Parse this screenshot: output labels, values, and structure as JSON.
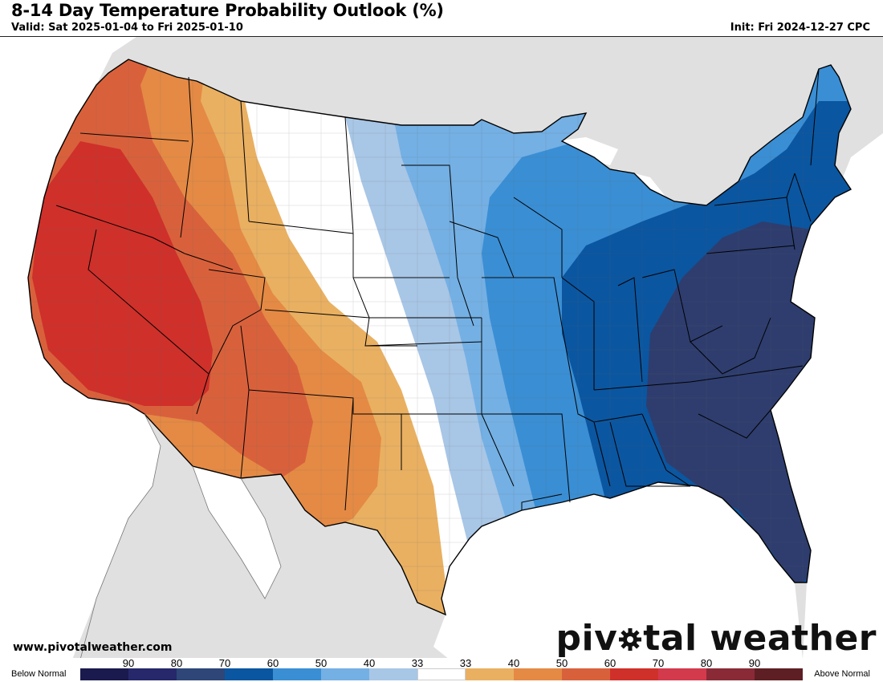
{
  "header": {
    "title": "8-14 Day Temperature Probability Outlook (%)",
    "valid": "Valid: Sat 2025-01-04 to Fri 2025-01-10",
    "init": "Init: Fri 2024-12-27 CPC"
  },
  "footer": {
    "credit": "www.pivotalweather.com",
    "brand_prefix": "piv",
    "brand_suffix": "tal weather"
  },
  "legend": {
    "left_label": "Below Normal",
    "right_label": "Above Normal",
    "ticks": [
      "90",
      "80",
      "70",
      "60",
      "50",
      "40",
      "33",
      "33",
      "40",
      "50",
      "60",
      "70",
      "80",
      "90"
    ],
    "colors": [
      "#1a1a4e",
      "#26286b",
      "#2e4678",
      "#0b56a0",
      "#3a8ed4",
      "#74b0e4",
      "#a8c6e6",
      "#ffffff",
      "#e9b062",
      "#e48a45",
      "#d8613c",
      "#cf302a",
      "#d33a4c",
      "#8a2a37",
      "#5e1f24"
    ]
  },
  "map": {
    "land_color": "#e0e0e0",
    "ocean_color": "#ffffff",
    "categories": {
      "below_33": "#a8c6e6",
      "below_40": "#74b0e4",
      "below_50": "#3a8ed4",
      "below_60": "#0b56a0",
      "below_70": "#2e3d6e",
      "above_33": "#e9b062",
      "above_40": "#e48a45",
      "above_50": "#d8613c",
      "above_60": "#cf302a"
    }
  }
}
